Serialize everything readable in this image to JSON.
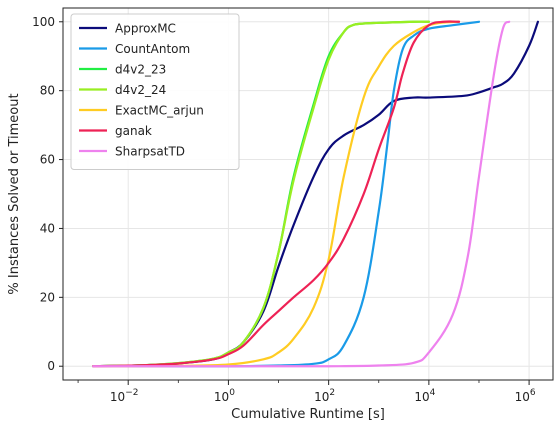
{
  "chart_data": {
    "type": "line",
    "xlabel": "Cumulative Runtime [s]",
    "ylabel": "% Instances Solved or Timeout",
    "x_scale": "log",
    "xlim": [
      0.0005,
      3000000
    ],
    "ylim": [
      -4,
      104
    ],
    "grid": true,
    "legend_position": "top-left",
    "x_ticks": [
      {
        "value": 0.01,
        "base": "10",
        "exp": "−2"
      },
      {
        "value": 1,
        "base": "10",
        "exp": "0"
      },
      {
        "value": 100,
        "base": "10",
        "exp": "2"
      },
      {
        "value": 10000,
        "base": "10",
        "exp": "4"
      },
      {
        "value": 1000000,
        "base": "10",
        "exp": "6"
      }
    ],
    "y_ticks": [
      "0",
      "20",
      "40",
      "60",
      "80",
      "100"
    ],
    "series": [
      {
        "name": "ApproxMC",
        "color": "#0b0b7a",
        "x": [
          0.002,
          0.005,
          0.02,
          0.1,
          0.5,
          1,
          2,
          5,
          10,
          20,
          50,
          100,
          200,
          500,
          1000,
          2000,
          5000,
          10000,
          50000,
          100000,
          200000,
          300000,
          500000,
          1000000,
          1500000
        ],
        "y": [
          0,
          0.1,
          0.3,
          0.8,
          2,
          4,
          7,
          16,
          29,
          41,
          55,
          63,
          67,
          70,
          73,
          77,
          78,
          78,
          78.5,
          79.5,
          81,
          82,
          85,
          93,
          100
        ]
      },
      {
        "name": "CountAntom",
        "color": "#1a9be8",
        "x": [
          0.002,
          0.01,
          0.1,
          1,
          10,
          50,
          100,
          200,
          500,
          1000,
          1500,
          2000,
          3000,
          5000,
          10000,
          30000,
          100000
        ],
        "y": [
          0,
          0,
          0,
          0,
          0.2,
          0.7,
          2,
          6,
          20,
          45,
          65,
          80,
          92,
          96,
          98,
          99,
          100
        ]
      },
      {
        "name": "d4v2_23",
        "color": "#22ee44",
        "x": [
          0.002,
          0.005,
          0.02,
          0.1,
          0.5,
          1,
          2,
          5,
          10,
          20,
          50,
          100,
          200,
          300,
          500,
          1000,
          5000,
          10000
        ],
        "y": [
          0,
          0.1,
          0.3,
          0.9,
          2.2,
          4,
          7,
          17,
          33,
          55,
          76,
          90,
          97,
          99,
          99.5,
          99.7,
          100,
          100
        ]
      },
      {
        "name": "d4v2_24",
        "color": "#99ee22",
        "x": [
          0.002,
          0.005,
          0.02,
          0.1,
          0.5,
          1,
          2,
          5,
          10,
          20,
          50,
          100,
          200,
          300,
          500,
          1000,
          5000,
          10000
        ],
        "y": [
          0,
          0.1,
          0.3,
          0.9,
          2.2,
          4,
          7,
          17,
          33,
          54,
          75,
          89,
          97,
          99,
          99.5,
          99.7,
          100,
          100
        ]
      },
      {
        "name": "ExactMC_arjun",
        "color": "#ffcc22",
        "x": [
          0.002,
          0.01,
          0.1,
          1,
          5,
          10,
          20,
          50,
          100,
          200,
          500,
          1000,
          2000,
          5000,
          10000,
          20000,
          40000
        ],
        "y": [
          0,
          0,
          0.1,
          0.5,
          2,
          4,
          8,
          17,
          31,
          55,
          78,
          87,
          93,
          97,
          99,
          99.8,
          100
        ]
      },
      {
        "name": "ganak",
        "color": "#ee2255",
        "x": [
          0.002,
          0.005,
          0.02,
          0.1,
          0.5,
          1,
          2,
          5,
          10,
          20,
          50,
          100,
          200,
          500,
          1000,
          2000,
          3000,
          5000,
          10000,
          20000,
          40000
        ],
        "y": [
          0,
          0.1,
          0.3,
          0.8,
          2,
          3.5,
          6,
          12,
          16,
          20,
          25,
          30,
          37,
          50,
          63,
          75,
          85,
          94,
          99,
          100,
          100
        ]
      },
      {
        "name": "SharpsatTD",
        "color": "#ee82ee",
        "x": [
          0.002,
          0.1,
          10,
          100,
          1000,
          5000,
          10000,
          30000,
          60000,
          100000,
          200000,
          300000,
          400000
        ],
        "y": [
          0,
          0,
          0,
          0,
          0.2,
          1,
          4,
          15,
          32,
          55,
          85,
          98,
          100
        ]
      }
    ]
  }
}
